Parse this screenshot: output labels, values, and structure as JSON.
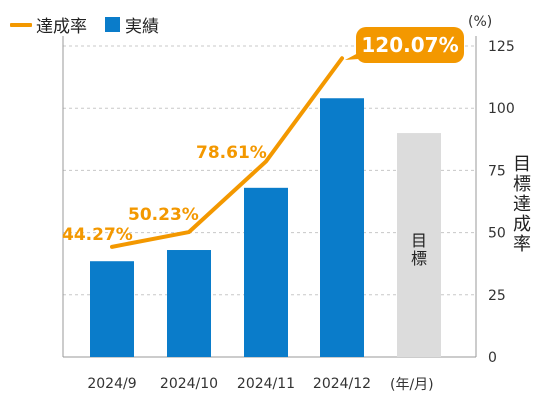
{
  "legend": {
    "rate_label": "達成率",
    "actual_label": "実績"
  },
  "units": {
    "percent": "(%)",
    "x_unit": "(年/月)"
  },
  "right_axis_title": "目標達成率",
  "target_label": "目標",
  "colors": {
    "actual": "#0a7cca",
    "target": "#dcdcdc",
    "rate_line": "#f39800",
    "grid": "#c8c8c8"
  },
  "chart_data": {
    "type": "bar",
    "categories": [
      "2024/9",
      "2024/10",
      "2024/11",
      "2024/12"
    ],
    "series": [
      {
        "name": "実績",
        "values": [
          38.5,
          43,
          68,
          104
        ]
      },
      {
        "name": "目標",
        "values": [
          null,
          null,
          null,
          90
        ]
      },
      {
        "name": "達成率",
        "type": "line",
        "values": [
          44.27,
          50.23,
          78.61,
          120.07
        ]
      }
    ],
    "rate_labels": [
      "44.27%",
      "50.23%",
      "78.61%",
      "120.07%"
    ],
    "y_ticks": [
      "0",
      "25",
      "50",
      "75",
      "100",
      "125"
    ],
    "ylim": [
      0,
      125
    ],
    "grid": true,
    "legend_position": "top-left"
  }
}
